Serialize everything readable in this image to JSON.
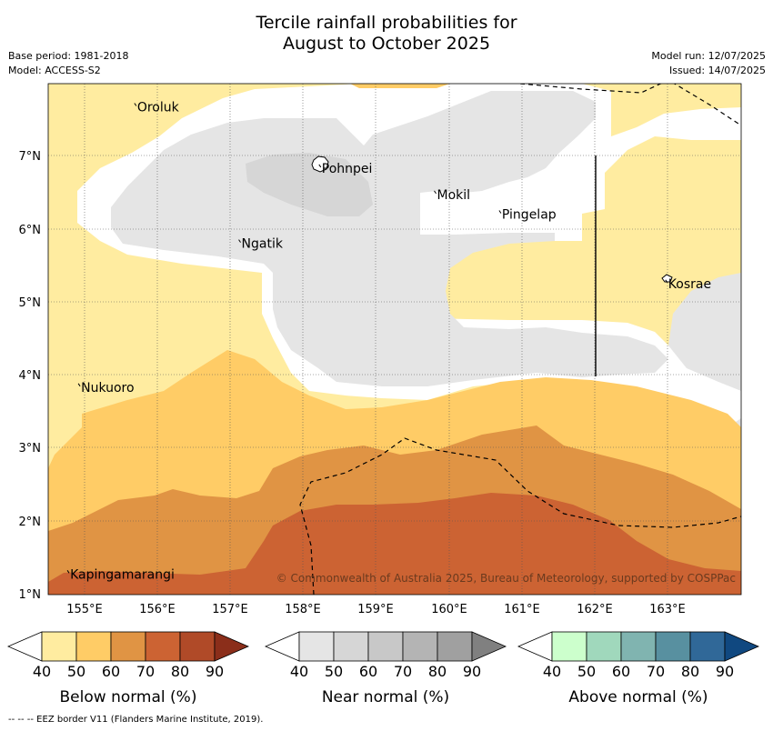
{
  "title": {
    "line1": "Tercile rainfall probabilities for",
    "line2": "August to October 2025"
  },
  "meta": {
    "base_period": "Base period: 1981-2018",
    "model": "Model: ACCESS-S2",
    "model_run": "Model run: 12/07/2025",
    "issued": "Issued: 14/07/2025"
  },
  "map": {
    "lon_labels": [
      "155°E",
      "156°E",
      "157°E",
      "158°E",
      "159°E",
      "160°E",
      "161°E",
      "162°E",
      "163°E"
    ],
    "lat_labels": [
      "7°N",
      "6°N",
      "5°N",
      "4°N",
      "3°N",
      "2°N",
      "1°N"
    ],
    "places": [
      {
        "name": "Oroluk",
        "lon": 155.72,
        "lat": 7.62
      },
      {
        "name": "Pohnpei",
        "lon": 158.25,
        "lat": 6.78
      },
      {
        "name": "Mokil",
        "lon": 159.83,
        "lat": 6.42
      },
      {
        "name": "Pingelap",
        "lon": 160.72,
        "lat": 6.15
      },
      {
        "name": "Ngatik",
        "lon": 157.15,
        "lat": 5.75
      },
      {
        "name": "Kosrae",
        "lon": 163.0,
        "lat": 5.2
      },
      {
        "name": "Nukuoro",
        "lon": 154.95,
        "lat": 3.78
      },
      {
        "name": "Kapingamarangi",
        "lon": 154.8,
        "lat": 1.22
      }
    ],
    "copyright": "© Commonwealth of Australia 2025, Bureau of Meteorology, supported by COSPPac",
    "colors": {
      "below_40": "#ffeca0",
      "below_50": "#ffcc66",
      "below_60": "#e09444",
      "below_70": "#cc6333",
      "near_40": "#e5e5e5",
      "near_50": "#d6d6d6"
    }
  },
  "legends": [
    {
      "label": "Below normal (%)",
      "ticks": [
        "40",
        "50",
        "60",
        "70",
        "80",
        "90"
      ],
      "colors": [
        "#ffeca0",
        "#ffcc66",
        "#e09444",
        "#cc6333",
        "#b04a28",
        "#8b2e1a"
      ]
    },
    {
      "label": "Near normal (%)",
      "ticks": [
        "40",
        "50",
        "60",
        "70",
        "80",
        "90"
      ],
      "colors": [
        "#e5e5e5",
        "#d6d6d6",
        "#c8c8c8",
        "#b4b4b4",
        "#a0a0a0",
        "#808080"
      ]
    },
    {
      "label": "Above normal (%)",
      "ticks": [
        "40",
        "50",
        "60",
        "70",
        "80",
        "90"
      ],
      "colors": [
        "#ccffcc",
        "#a0d8bc",
        "#80b4b0",
        "#5890a0",
        "#306898",
        "#104880"
      ]
    }
  ],
  "footer": "--  --  -- EEZ border V11 (Flanders Marine Institute, 2019)."
}
